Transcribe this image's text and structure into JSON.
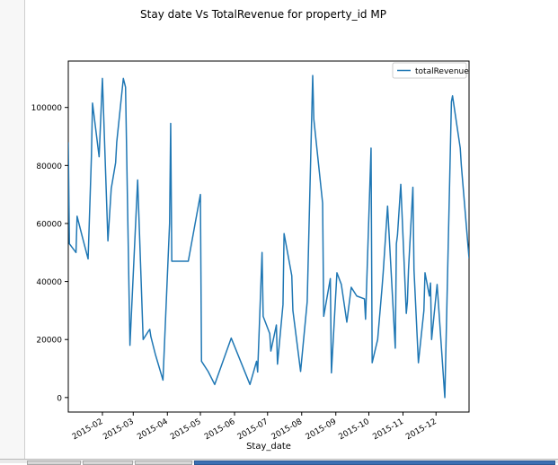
{
  "chart_data": {
    "type": "line",
    "title": "Stay date Vs TotalRevenue for property_id MP",
    "xlabel": "Stay_date",
    "ylabel": "",
    "xlim": [
      "2015-01-01",
      "2015-12-31"
    ],
    "ylim": [
      -5000,
      116000
    ],
    "x_ticks": [
      "2015-02",
      "2015-03",
      "2015-04",
      "2015-05",
      "2015-06",
      "2015-07",
      "2015-08",
      "2015-09",
      "2015-10",
      "2015-11",
      "2015-12"
    ],
    "y_ticks": [
      0,
      20000,
      40000,
      60000,
      80000,
      100000
    ],
    "grid": false,
    "legend": "top-right",
    "series": [
      {
        "name": "totalRevenue",
        "color": "#1f77b4",
        "x": [
          "2015-01-01",
          "2015-01-02",
          "2015-01-08",
          "2015-01-09",
          "2015-01-14",
          "2015-01-19",
          "2015-01-22",
          "2015-01-23",
          "2015-01-29",
          "2015-02-01",
          "2015-02-06",
          "2015-02-09",
          "2015-02-13",
          "2015-02-14",
          "2015-02-20",
          "2015-02-22",
          "2015-02-26",
          "2015-03-05",
          "2015-03-10",
          "2015-03-15",
          "2015-03-16",
          "2015-03-17",
          "2015-03-21",
          "2015-03-28",
          "2015-04-03",
          "2015-04-04",
          "2015-04-05",
          "2015-04-06",
          "2015-04-20",
          "2015-05-01",
          "2015-05-02",
          "2015-05-08",
          "2015-05-14",
          "2015-05-29",
          "2015-06-15",
          "2015-06-21",
          "2015-06-22",
          "2015-06-26",
          "2015-06-27",
          "2015-07-03",
          "2015-07-04",
          "2015-07-09",
          "2015-07-10",
          "2015-07-15",
          "2015-07-16",
          "2015-07-23",
          "2015-07-24",
          "2015-07-31",
          "2015-08-06",
          "2015-08-11",
          "2015-08-12",
          "2015-08-20",
          "2015-08-21",
          "2015-08-27",
          "2015-08-28",
          "2015-09-02",
          "2015-09-06",
          "2015-09-11",
          "2015-09-15",
          "2015-09-20",
          "2015-09-27",
          "2015-09-28",
          "2015-10-03",
          "2015-10-04",
          "2015-10-09",
          "2015-10-13",
          "2015-10-14",
          "2015-10-18",
          "2015-10-25",
          "2015-10-26",
          "2015-10-27",
          "2015-10-30",
          "2015-11-04",
          "2015-11-05",
          "2015-11-06",
          "2015-11-10",
          "2015-11-11",
          "2015-11-15",
          "2015-11-20",
          "2015-11-21",
          "2015-11-25",
          "2015-11-26",
          "2015-11-27",
          "2015-12-02",
          "2015-12-09",
          "2015-12-15",
          "2015-12-16",
          "2015-12-23",
          "2015-12-24",
          "2015-12-31"
        ],
        "values": [
          88000,
          53000,
          50000,
          62500,
          55000,
          47800,
          83000,
          101500,
          83000,
          110000,
          54000,
          72000,
          81000,
          88000,
          110000,
          107000,
          18000,
          75000,
          20000,
          23000,
          23500,
          21000,
          15000,
          6000,
          60000,
          94500,
          47000,
          47000,
          47000,
          70000,
          12500,
          9000,
          4500,
          20500,
          4500,
          12500,
          8800,
          50000,
          28000,
          22000,
          16000,
          25000,
          11500,
          32000,
          56500,
          42000,
          30000,
          9000,
          33000,
          111000,
          96000,
          67000,
          28000,
          41000,
          8500,
          43000,
          39000,
          26000,
          38000,
          35000,
          34000,
          27000,
          86000,
          12000,
          20000,
          38000,
          43000,
          66000,
          17000,
          53000,
          56000,
          73500,
          29000,
          33000,
          44000,
          72500,
          44000,
          12000,
          30000,
          43000,
          35000,
          39500,
          20000,
          39000,
          0,
          102000,
          104000,
          86000,
          80000,
          48000
        ]
      }
    ]
  }
}
